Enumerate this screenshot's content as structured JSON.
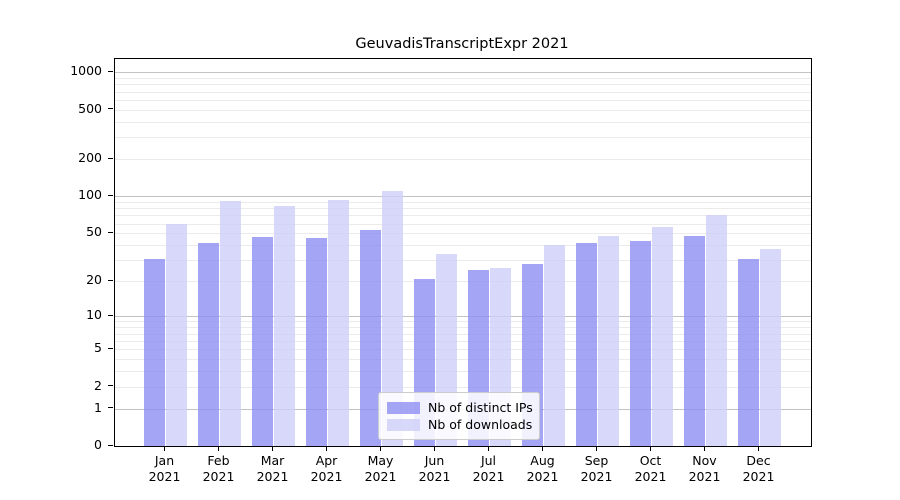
{
  "chart_data": {
    "type": "bar",
    "title": "GeuvadisTranscriptExpr 2021",
    "year": "2021",
    "categories": [
      "Jan",
      "Feb",
      "Mar",
      "Apr",
      "May",
      "Jun",
      "Jul",
      "Aug",
      "Sep",
      "Oct",
      "Nov",
      "Dec"
    ],
    "series": [
      {
        "name": "Nb of distinct IPs",
        "color": "#8f8ff3",
        "alpha": 0.8,
        "values": [
          31,
          42,
          47,
          46,
          53,
          21,
          25,
          28,
          42,
          43,
          48,
          31
        ]
      },
      {
        "name": "Nb of downloads",
        "color": "#cecef9",
        "alpha": 0.8,
        "values": [
          60,
          92,
          84,
          93,
          110,
          34,
          26,
          40,
          48,
          56,
          70,
          37
        ]
      }
    ],
    "y_scale": "log1p",
    "y_ticks": [
      0,
      1,
      2,
      5,
      10,
      20,
      50,
      100,
      200,
      500,
      1000
    ],
    "y_major_gridlines": [
      1,
      10,
      100,
      1000
    ],
    "y_max": 1280,
    "xlabel": "",
    "ylabel": "",
    "grid": "horizontal major+minor, on",
    "legend_position": "inside lower-center",
    "colors": {
      "major_grid": "#c3c3c3",
      "minor_grid": "#ebebeb",
      "spine": "#000000",
      "background": "#ffffff"
    }
  }
}
